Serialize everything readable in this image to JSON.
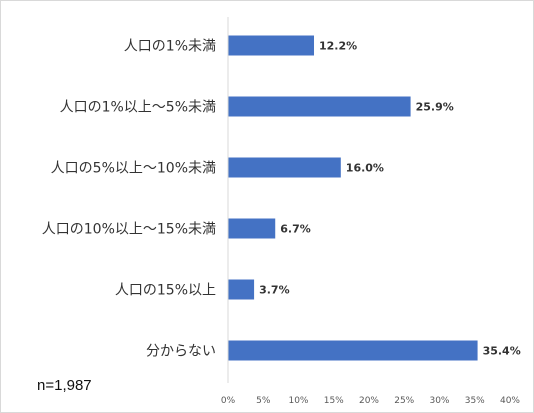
{
  "chart_data": {
    "type": "bar",
    "orientation": "horizontal",
    "categories": [
      "人口の1%未満",
      "人口の1%以上～5%未満",
      "人口の5%以上～10%未満",
      "人口の10%以上～15%未満",
      "人口の15%以上",
      "分からない"
    ],
    "values": [
      12.2,
      25.9,
      16.0,
      6.7,
      3.7,
      35.4
    ],
    "value_labels": [
      "12.2%",
      "25.9%",
      "16.0%",
      "6.7%",
      "3.7%",
      "35.4%"
    ],
    "xlim": [
      0,
      40
    ],
    "x_ticks": [
      "0%",
      "5%",
      "10%",
      "15%",
      "20%",
      "25%",
      "30%",
      "35%",
      "40%"
    ],
    "grid": false,
    "bar_color": "#4472c4"
  },
  "note": "n=1,987"
}
